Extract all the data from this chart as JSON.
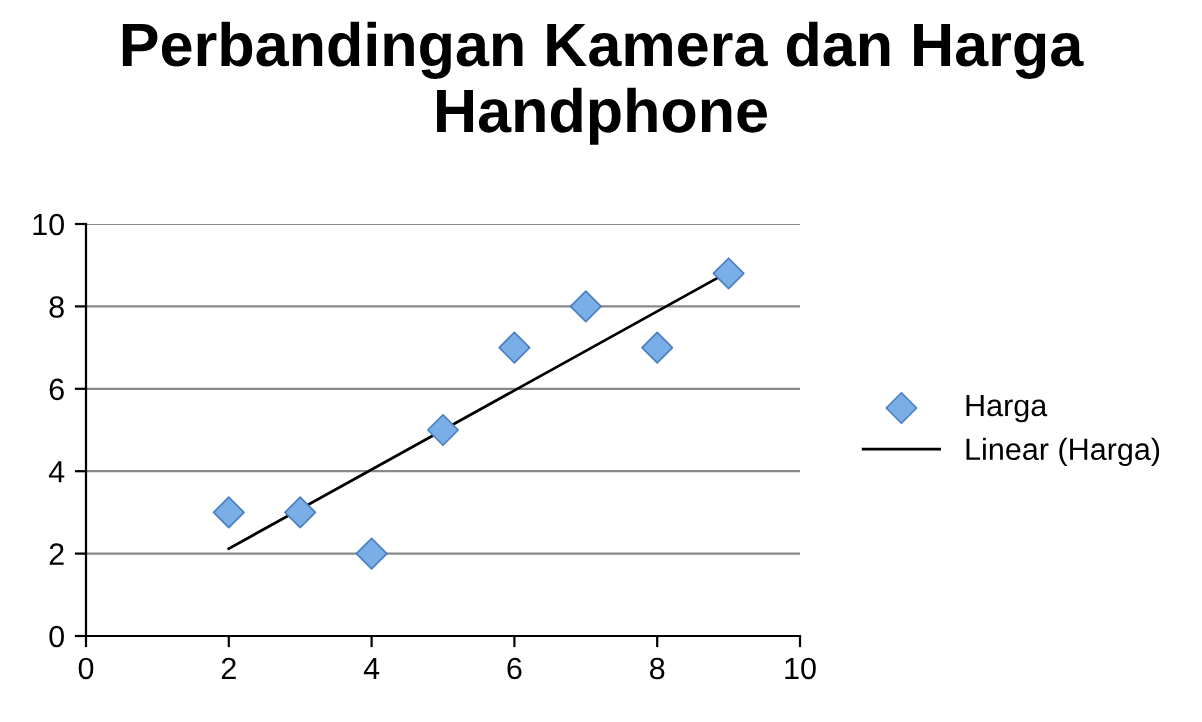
{
  "chart_data": {
    "type": "scatter",
    "title": "Perbandingan Kamera dan Harga Handphone",
    "series": [
      {
        "name": "Harga",
        "color": "#7aaee6",
        "marker": "diamond",
        "x": [
          2,
          3,
          4,
          5,
          6,
          7,
          8,
          9
        ],
        "values": [
          3,
          3,
          2,
          5,
          7,
          8,
          7,
          8.8
        ]
      },
      {
        "name": "Linear (Harga)",
        "type": "line",
        "color": "#000000",
        "marker": "none",
        "line_style": "solid",
        "x": [
          2,
          9
        ],
        "values": [
          2.12,
          8.84
        ]
      }
    ],
    "xlim": [
      0,
      10
    ],
    "xticks": [
      0,
      2,
      4,
      6,
      8,
      10
    ],
    "ylim": [
      0,
      10
    ],
    "yticks": [
      0,
      2,
      4,
      6,
      8,
      10
    ],
    "grid": "y",
    "legend": "right"
  }
}
